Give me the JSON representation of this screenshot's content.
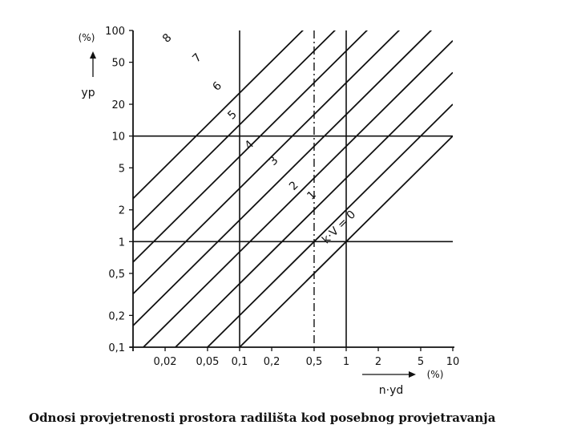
{
  "caption": "Odnosi provjetrenosti prostora radilišta kod posebnog provjetravanja",
  "chart_data": {
    "type": "line",
    "title": "Odnosi provjetrenosti prostora radilišta kod posebnog provjetravanja",
    "x_scale": "log",
    "y_scale": "log",
    "xlim": [
      0.01,
      10
    ],
    "ylim": [
      0.1,
      100
    ],
    "xlabel": "n·yd",
    "x_unit": "(%)",
    "ylabel": "yp",
    "y_unit": "(%)",
    "x_ticks": [
      {
        "value": 0.02,
        "label": "0,02"
      },
      {
        "value": 0.05,
        "label": "0,05"
      },
      {
        "value": 0.1,
        "label": "0,1"
      },
      {
        "value": 0.2,
        "label": "0,2"
      },
      {
        "value": 0.5,
        "label": "0,5"
      },
      {
        "value": 1,
        "label": "1"
      },
      {
        "value": 2,
        "label": "2"
      },
      {
        "value": 5,
        "label": "5"
      },
      {
        "value": 10,
        "label": "10"
      }
    ],
    "y_ticks": [
      {
        "value": 0.1,
        "label": "0,1"
      },
      {
        "value": 0.2,
        "label": "0,2"
      },
      {
        "value": 0.5,
        "label": "0,5"
      },
      {
        "value": 1,
        "label": "1"
      },
      {
        "value": 2,
        "label": "2"
      },
      {
        "value": 5,
        "label": "5"
      },
      {
        "value": 10,
        "label": "10"
      },
      {
        "value": 20,
        "label": "20"
      },
      {
        "value": 50,
        "label": "50"
      },
      {
        "value": 100,
        "label": "100"
      }
    ],
    "reference_lines": {
      "horizontal": [
        1,
        10
      ],
      "vertical": [
        0.1,
        1
      ],
      "dash_dot_vertical": 0.5
    },
    "series_rule": "yp = 2^k · (n·yd)",
    "series": [
      {
        "label": "k·V = 0",
        "k": 0,
        "label_at": {
          "x": 0.9,
          "y": 1.3
        }
      },
      {
        "label": "1",
        "k": 1,
        "label_at": {
          "x": 0.5,
          "y": 2.6
        }
      },
      {
        "label": "2",
        "k": 2,
        "label_at": {
          "x": 0.34,
          "y": 3.2
        }
      },
      {
        "label": "3",
        "k": 3,
        "label_at": {
          "x": 0.22,
          "y": 5.5
        }
      },
      {
        "label": "4",
        "k": 4,
        "label_at": {
          "x": 0.13,
          "y": 7.8
        }
      },
      {
        "label": "5",
        "k": 5,
        "label_at": {
          "x": 0.09,
          "y": 15
        }
      },
      {
        "label": "6",
        "k": 6,
        "label_at": {
          "x": 0.065,
          "y": 28
        }
      },
      {
        "label": "7",
        "k": 7,
        "label_at": {
          "x": 0.042,
          "y": 52
        }
      },
      {
        "label": "8",
        "k": 8,
        "label_at": {
          "x": 0.022,
          "y": 80
        }
      }
    ]
  }
}
